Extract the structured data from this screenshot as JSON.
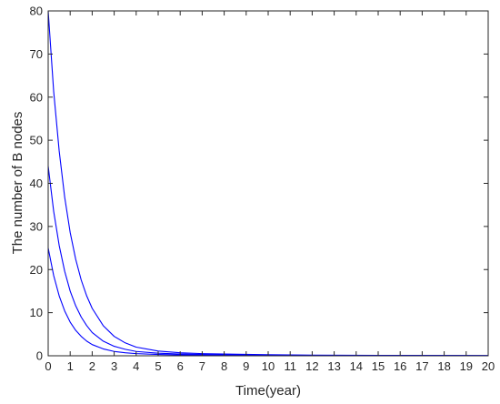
{
  "chart_data": {
    "type": "line",
    "title": "",
    "xlabel": "Time(year)",
    "ylabel": "The number of B nodes",
    "xlim": [
      0,
      20
    ],
    "ylim": [
      0,
      80
    ],
    "xticks": [
      0,
      1,
      2,
      3,
      4,
      5,
      6,
      7,
      8,
      9,
      10,
      11,
      12,
      13,
      14,
      15,
      16,
      17,
      18,
      19,
      20
    ],
    "yticks": [
      0,
      10,
      20,
      30,
      40,
      50,
      60,
      70,
      80
    ],
    "grid": false,
    "line_color": "#0000ff",
    "series": [
      {
        "x": [
          0,
          0.25,
          0.5,
          0.75,
          1,
          1.25,
          1.5,
          1.75,
          2,
          2.5,
          3,
          3.5,
          4,
          5,
          6,
          7,
          8,
          10,
          12,
          15,
          20
        ],
        "values": [
          80,
          61.3,
          47.5,
          36.8,
          28.6,
          22.4,
          17.6,
          13.9,
          11.0,
          7.0,
          4.5,
          3.0,
          2.0,
          1.1,
          0.7,
          0.5,
          0.4,
          0.25,
          0.15,
          0.1,
          0.05
        ]
      },
      {
        "x": [
          0,
          0.25,
          0.5,
          0.75,
          1,
          1.25,
          1.5,
          1.75,
          2,
          2.5,
          3,
          3.5,
          4,
          5,
          6,
          7,
          8,
          10,
          12,
          15,
          20
        ],
        "values": [
          44,
          33.5,
          25.6,
          19.6,
          15.0,
          11.6,
          9.0,
          7.0,
          5.4,
          3.4,
          2.2,
          1.5,
          1.0,
          0.6,
          0.4,
          0.3,
          0.25,
          0.15,
          0.1,
          0.07,
          0.04
        ]
      },
      {
        "x": [
          0,
          0.25,
          0.5,
          0.75,
          1,
          1.25,
          1.5,
          1.75,
          2,
          2.5,
          3,
          3.5,
          4,
          5,
          6,
          7,
          8,
          10,
          12,
          15,
          20
        ],
        "values": [
          25,
          18.6,
          13.9,
          10.4,
          7.8,
          5.9,
          4.5,
          3.4,
          2.6,
          1.6,
          1.0,
          0.7,
          0.5,
          0.3,
          0.2,
          0.15,
          0.12,
          0.08,
          0.05,
          0.03,
          0.02
        ]
      }
    ]
  }
}
